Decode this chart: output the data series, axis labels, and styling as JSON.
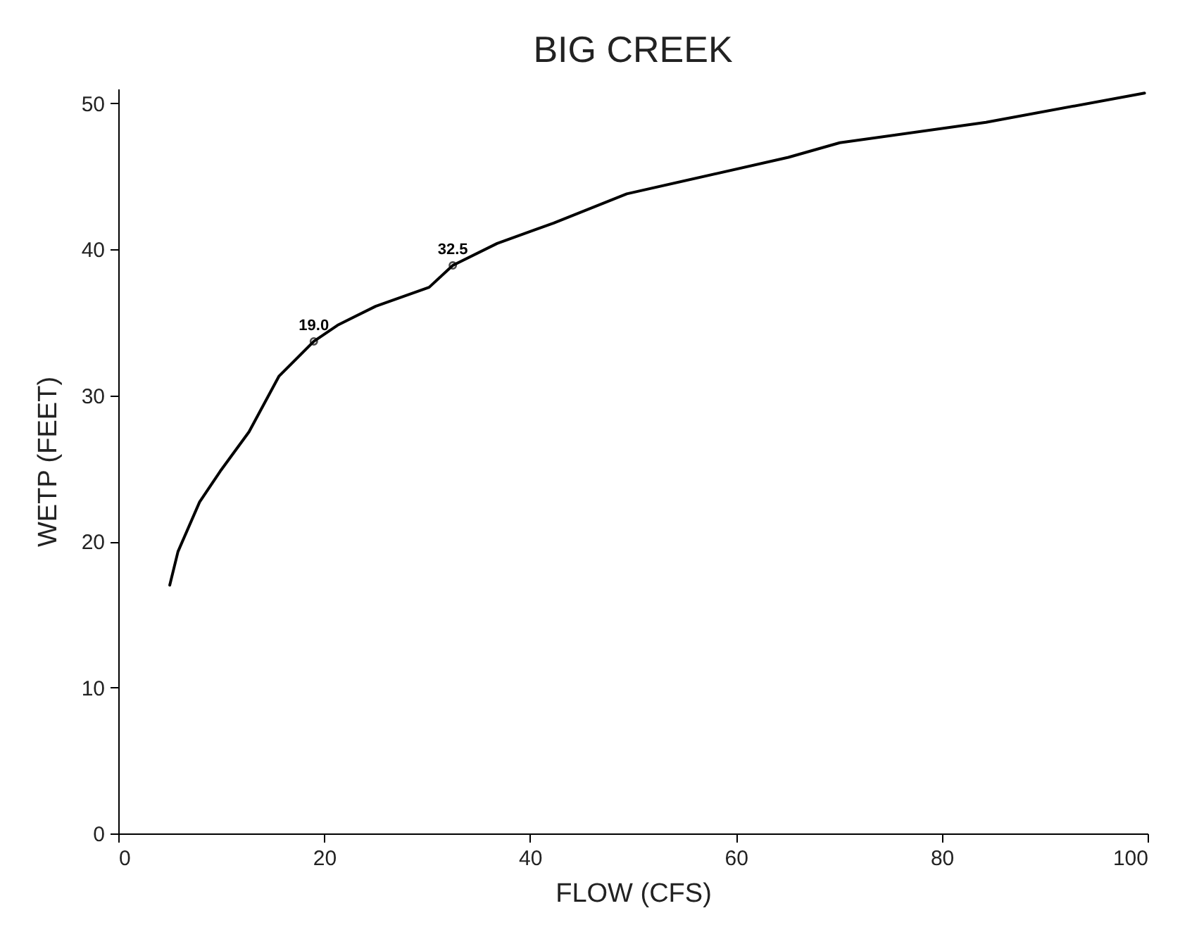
{
  "chart_data": {
    "type": "line",
    "title": "BIG CREEK",
    "xlabel": "FLOW (CFS)",
    "ylabel": "WETP (FEET)",
    "xlim": [
      0,
      100
    ],
    "ylim": [
      0,
      51
    ],
    "xticks": [
      0,
      20,
      40,
      60,
      80,
      100
    ],
    "yticks": [
      0,
      10,
      20,
      30,
      40,
      50
    ],
    "grid": false,
    "legend": false,
    "marker": "none",
    "line_style": "solid",
    "series": [
      {
        "color": "#000000",
        "x": [
          5,
          5.8,
          7.9,
          9.9,
          12.7,
          15.6,
          19,
          21.3,
          25,
          30.2,
          32.5,
          36.8,
          42.3,
          49.4,
          65.1,
          70.1,
          84.3,
          99.7
        ],
        "values": [
          17,
          19.3,
          22.7,
          24.8,
          27.5,
          31.3,
          33.7,
          34.8,
          36.1,
          37.4,
          38.9,
          40.4,
          41.8,
          43.8,
          46.3,
          47.3,
          48.7,
          50.7
        ]
      }
    ],
    "annotations": [
      {
        "text": "19.0",
        "x": 19,
        "y": 33.7
      },
      {
        "text": "32.5",
        "x": 32.5,
        "y": 38.9
      }
    ]
  }
}
